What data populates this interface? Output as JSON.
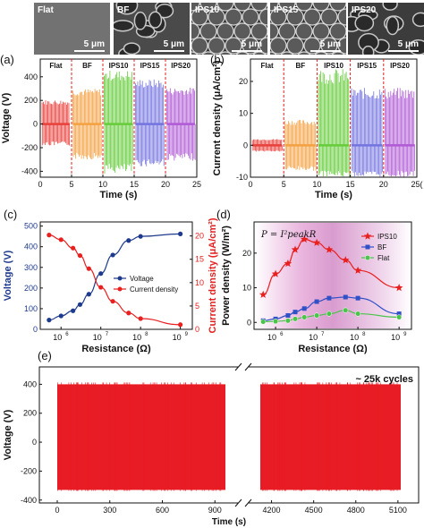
{
  "sem": {
    "tiles": [
      {
        "label": "Flat",
        "scale": "5 μm",
        "tone": "#6a6a6a",
        "pattern": "flat"
      },
      {
        "label": "BF",
        "scale": "5 μm",
        "tone": "#4a4a4a",
        "pattern": "bf"
      },
      {
        "label": "IPS10",
        "scale": "5 μm",
        "tone": "#2c2c2c",
        "pattern": "circles"
      },
      {
        "label": "IPS15",
        "scale": "5 μm",
        "tone": "#2c2c2c",
        "pattern": "circles"
      },
      {
        "label": "IPS20",
        "scale": "5 μm",
        "tone": "#3c3c3c",
        "pattern": "bf"
      }
    ]
  },
  "chart_data": [
    {
      "panel": "(a)",
      "type": "line",
      "xlabel": "Time (s)",
      "ylabel": "Voltage (V)",
      "xlim": [
        0,
        25
      ],
      "ylim": [
        -450,
        550
      ],
      "xticks": [
        0,
        5,
        10,
        15,
        20,
        25
      ],
      "yticks": [
        -400,
        -200,
        0,
        200,
        400
      ],
      "segments": [
        {
          "label": "Flat",
          "x_range": [
            0.3,
            4.7
          ],
          "pos": 205,
          "neg": -185,
          "color": "#e8413c"
        },
        {
          "label": "BF",
          "x_range": [
            5.2,
            9.8
          ],
          "pos": 300,
          "neg": -300,
          "color": "#f4a142"
        },
        {
          "label": "IPS10",
          "x_range": [
            10.2,
            14.8
          ],
          "pos": 455,
          "neg": -420,
          "color": "#66cc3a"
        },
        {
          "label": "IPS15",
          "x_range": [
            15.2,
            19.8
          ],
          "pos": 380,
          "neg": -360,
          "color": "#7474e0"
        },
        {
          "label": "IPS20",
          "x_range": [
            20.2,
            24.7
          ],
          "pos": 310,
          "neg": -310,
          "color": "#b05ad6"
        }
      ],
      "dividers": [
        5,
        10,
        15,
        20
      ]
    },
    {
      "panel": "(b)",
      "type": "line",
      "xlabel": "Time (s)",
      "ylabel": "Current density (μA/cm²)",
      "xlim": [
        0,
        25
      ],
      "ylim": [
        -10,
        27
      ],
      "xticks": [
        0,
        5,
        10,
        15,
        20,
        25
      ],
      "xtick_labels": [
        "0",
        "5",
        "10",
        "15",
        "20",
        "25("
      ],
      "yticks": [
        -10,
        0,
        10,
        20
      ],
      "segments": [
        {
          "label": "Flat",
          "x_range": [
            0.3,
            4.7
          ],
          "pos": 2,
          "neg": -2,
          "color": "#e8413c"
        },
        {
          "label": "BF",
          "x_range": [
            5.2,
            9.8
          ],
          "pos": 8,
          "neg": -8,
          "color": "#f4a142"
        },
        {
          "label": "IPS10",
          "x_range": [
            10.2,
            14.8
          ],
          "pos": 24,
          "neg": -10,
          "color": "#66cc3a"
        },
        {
          "label": "IPS15",
          "x_range": [
            15.2,
            19.8
          ],
          "pos": 18,
          "neg": -10,
          "color": "#7474e0"
        },
        {
          "label": "IPS20",
          "x_range": [
            20.2,
            24.7
          ],
          "pos": 18,
          "neg": -10,
          "color": "#b05ad6"
        }
      ],
      "dividers": [
        5,
        10,
        15,
        20
      ]
    },
    {
      "panel": "(c)",
      "type": "line",
      "xlabel": "Resistance (Ω)",
      "xscale": "log",
      "xlim": [
        300000,
        2000000000
      ],
      "x_tick_exponents": [
        6,
        7,
        8,
        9
      ],
      "ylabel": "Voltage (V)",
      "ylim": [
        0,
        520
      ],
      "yticks": [
        0,
        100,
        200,
        300,
        400,
        500
      ],
      "y2label": "Current density (μA/cm²)",
      "y2lim": [
        0,
        23
      ],
      "y2ticks": [
        0,
        5,
        10,
        15,
        20
      ],
      "legend_position": "center-right",
      "series": [
        {
          "name": "Voltage",
          "axis": "left",
          "color": "#1e3a8c",
          "x": [
            500000,
            1000000,
            2000000,
            3000000,
            5000000,
            10000000,
            20000000,
            50000000,
            100000000,
            1000000000
          ],
          "y": [
            45,
            65,
            90,
            120,
            170,
            270,
            360,
            430,
            450,
            462
          ]
        },
        {
          "name": "Current density",
          "axis": "right",
          "color": "#e82020",
          "x": [
            500000,
            1000000,
            2000000,
            3000000,
            5000000,
            10000000,
            20000000,
            50000000,
            100000000,
            1000000000
          ],
          "y": [
            20.2,
            19.2,
            17.4,
            15.8,
            13.0,
            9.0,
            6.0,
            3.5,
            2.3,
            1.0
          ]
        }
      ]
    },
    {
      "panel": "(d)",
      "type": "line",
      "xlabel": "Resistance (Ω)",
      "xscale": "log",
      "xlim": [
        300000,
        2000000000
      ],
      "x_tick_exponents": [
        6,
        7,
        8,
        9
      ],
      "ylabel": "Power density (W/m²)",
      "ylim": [
        -2,
        29
      ],
      "yticks": [
        0,
        10,
        20
      ],
      "annotation": "P = I²peakR",
      "legend_position": "top-right",
      "series": [
        {
          "name": "IPS10",
          "marker": "star",
          "color": "#e82020",
          "x": [
            500000,
            1000000,
            2000000,
            3000000,
            5000000,
            10000000,
            20000000,
            50000000,
            100000000,
            1000000000
          ],
          "y": [
            8,
            14,
            17,
            21,
            24,
            23,
            21,
            18,
            15,
            10
          ]
        },
        {
          "name": "BF",
          "marker": "square",
          "color": "#3050c8",
          "x": [
            500000,
            1000000,
            2000000,
            3000000,
            5000000,
            10000000,
            20000000,
            50000000,
            100000000,
            1000000000
          ],
          "y": [
            0.5,
            1,
            2,
            3,
            4,
            6,
            7,
            7.3,
            7,
            2.5
          ]
        },
        {
          "name": "Flat",
          "marker": "circle",
          "color": "#4cc44c",
          "x": [
            500000,
            1000000,
            2000000,
            3000000,
            5000000,
            10000000,
            20000000,
            50000000,
            100000000,
            1000000000
          ],
          "y": [
            0.2,
            0.3,
            0.5,
            1,
            1.5,
            2,
            2.5,
            3.5,
            2.5,
            1.5
          ]
        }
      ]
    },
    {
      "panel": "(e)",
      "type": "line",
      "xlabel": "Time (s)",
      "ylabel": "Voltage (V)",
      "ylim": [
        -420,
        520
      ],
      "yticks": [
        -400,
        -200,
        0,
        200,
        400
      ],
      "annotation": "~ 25k cycles",
      "segments": [
        {
          "x_range": [
            0,
            960
          ],
          "pos": 400,
          "neg": -330,
          "color": "#e81c24"
        },
        {
          "x_range": [
            4120,
            5120
          ],
          "pos": 400,
          "neg": -330,
          "color": "#e81c24"
        }
      ],
      "xtick_groups": [
        {
          "range": [
            -40,
            1000
          ],
          "ticks": [
            0,
            300,
            600,
            900
          ]
        },
        {
          "range": [
            4100,
            5150
          ],
          "ticks": [
            4200,
            4500,
            4800,
            5100
          ]
        }
      ]
    }
  ]
}
